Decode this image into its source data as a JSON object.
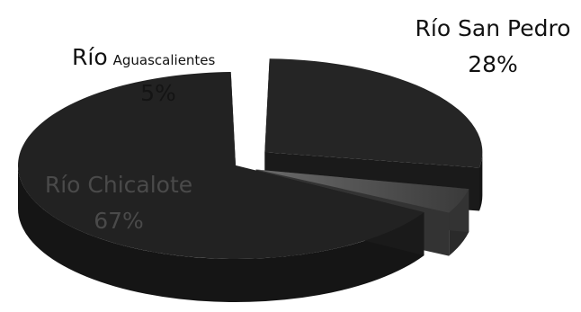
{
  "chart_data": {
    "type": "pie",
    "style": "3d-exploded",
    "title": "",
    "slices": [
      {
        "name": "Río San Pedro",
        "percent_label": "28%",
        "value": 28,
        "color": "#252525"
      },
      {
        "name": "Río Aguascalientes",
        "name_main": "Río",
        "name_small": "Aguascalientes",
        "percent_label": "5%",
        "value": 5,
        "color": "#5a5a5a"
      },
      {
        "name": "Río Chicalote",
        "percent_label": "67%",
        "value": 67,
        "color": "#222222"
      }
    ],
    "legend": "none"
  }
}
